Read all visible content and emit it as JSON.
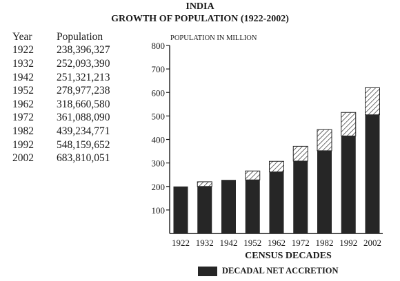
{
  "header": {
    "title": "INDIA",
    "subtitle": "GROWTH OF POPULATION (1922-2002)"
  },
  "table": {
    "headers": [
      "Year",
      "Population"
    ],
    "rows": [
      [
        "1922",
        "238,396,327"
      ],
      [
        "1932",
        "252,093,390"
      ],
      [
        "1942",
        "251,321,213"
      ],
      [
        "1952",
        "278,977,238"
      ],
      [
        "1962",
        "318,660,580"
      ],
      [
        "1972",
        "361,088,090"
      ],
      [
        "1982",
        "439,234,771"
      ],
      [
        "1992",
        "548,159,652"
      ],
      [
        "2002",
        "683,810,051"
      ]
    ]
  },
  "chart_data": {
    "type": "bar",
    "ylabel": "POPULATION IN MILLION",
    "xlabel": "CENSUS DECADES",
    "ylim": [
      0,
      800
    ],
    "yticks": [
      100,
      200,
      300,
      400,
      500,
      600,
      700,
      800
    ],
    "grid": false,
    "legend_position": "bottom",
    "categories": [
      "1922",
      "1932",
      "1942",
      "1952",
      "1962",
      "1972",
      "1982",
      "1992",
      "2002"
    ],
    "series": [
      {
        "name": "",
        "style": "solid",
        "values": [
          200,
          200,
          228,
          228,
          262,
          308,
          352,
          415,
          505
        ]
      },
      {
        "name": "DECADAL NET ACCRETION",
        "style": "hatched",
        "values": [
          0,
          20,
          0,
          38,
          45,
          63,
          90,
          100,
          115
        ]
      }
    ],
    "legend": [
      "DECADAL NET ACCRETION"
    ],
    "colors": {
      "solid": "#262626",
      "hatch": "#2a2a2a",
      "axis": "#1a1a1a"
    }
  }
}
